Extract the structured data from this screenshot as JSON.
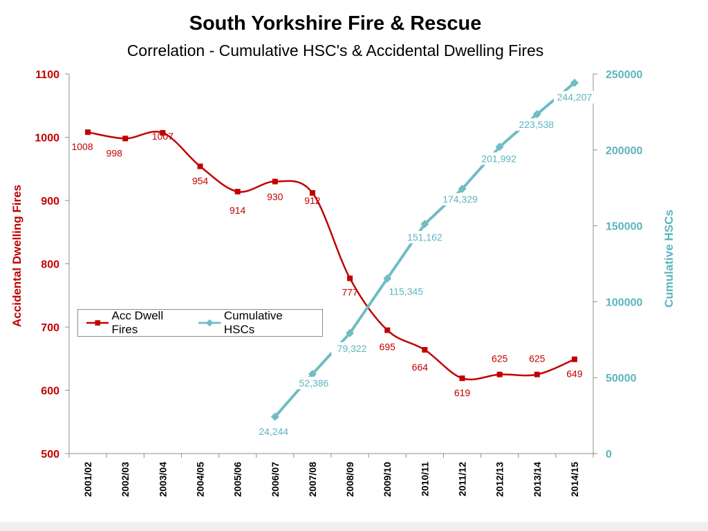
{
  "chart_data": {
    "type": "line",
    "title": "South Yorkshire Fire & Rescue",
    "subtitle": "Correlation -  Cumulative HSC's & Accidental Dwelling Fires",
    "categories": [
      "2001/02",
      "2002/03",
      "2003/04",
      "2004/05",
      "2005/06",
      "2006/07",
      "2007/08",
      "2008/09",
      "2009/10",
      "2010/11",
      "2011/12",
      "2012/13",
      "2013/14",
      "2014/15"
    ],
    "y_left": {
      "label": "Accidental Dwelling Fires",
      "range": [
        500,
        1100
      ],
      "ticks": [
        "500",
        "600",
        "700",
        "800",
        "900",
        "1000",
        "1100"
      ],
      "tick_values": [
        500,
        600,
        700,
        800,
        900,
        1000,
        1100
      ],
      "color": "#c00000"
    },
    "y_right": {
      "label": "Cumulative HSCs",
      "range": [
        0,
        250000
      ],
      "ticks": [
        "0",
        "50000",
        "100000",
        "150000",
        "200000",
        "250000"
      ],
      "tick_values": [
        0,
        50000,
        100000,
        150000,
        200000,
        250000
      ],
      "color": "#5ab5be"
    },
    "series": [
      {
        "name": "Acc Dwell Fires",
        "axis": "left",
        "color": "#c00000",
        "marker": "square",
        "smooth": true,
        "values": [
          1008,
          998,
          1007,
          954,
          914,
          930,
          912,
          777,
          695,
          664,
          619,
          625,
          625,
          649
        ],
        "labels": [
          "1008",
          "998",
          "1007",
          "954",
          "914",
          "930",
          "912",
          "777",
          "695",
          "664",
          "619",
          "625",
          "625",
          "649"
        ]
      },
      {
        "name": "Cumulative HSCs",
        "axis": "right",
        "color": "#6fbcc5",
        "marker": "diamond",
        "smooth": false,
        "values": [
          null,
          null,
          null,
          null,
          null,
          24244,
          52386,
          79322,
          115345,
          151162,
          174329,
          201992,
          223538,
          244207
        ],
        "labels": [
          "",
          "",
          "",
          "",
          "",
          "24,244",
          "52,386",
          "79,322",
          "115,345",
          "151,162",
          "174,329",
          "201,992",
          "223,538",
          "244,207"
        ]
      }
    ],
    "legend": {
      "position": "center-left",
      "entries": [
        "Acc Dwell Fires",
        "Cumulative HSCs"
      ]
    },
    "grid": false
  }
}
